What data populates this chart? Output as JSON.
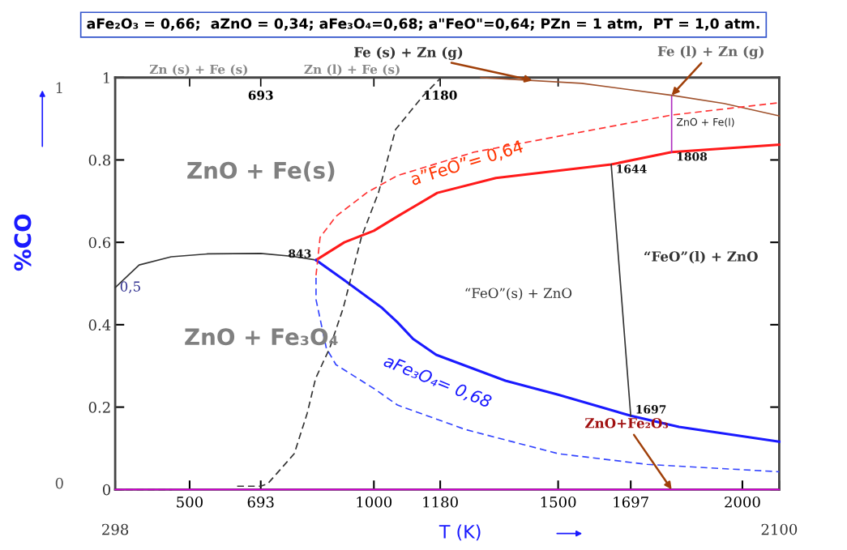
{
  "chart_data": {
    "type": "line",
    "title": "aFe₂O₃ = 0,66;  aZnO = 0,34; aFe₃O₄=0,68; a\"FeO\"=0,64; PZn = 1 atm,  PT = 1,0 atm.",
    "xlabel": "T (K)",
    "ylabel": "%CO",
    "xlim": [
      298,
      2100
    ],
    "ylim": [
      0,
      1
    ],
    "xticks": [
      {
        "value": 298,
        "label": null
      },
      500,
      693,
      1000,
      1180,
      1500,
      1697,
      2000,
      {
        "value": 2100,
        "label": null
      }
    ],
    "yticks": [
      0,
      0.2,
      0.4,
      0.6,
      0.8,
      1
    ],
    "x2lim": [
      298,
      2100
    ],
    "x2ticks": [
      {
        "value": 500,
        "label": null
      },
      {
        "value": 693,
        "label": "693"
      },
      {
        "value": 1000,
        "label": null
      },
      {
        "value": 1180,
        "label": "1180"
      },
      {
        "value": 1500,
        "label": null
      }
    ],
    "grid": false,
    "series": [
      {
        "color": "#333333",
        "line_style": "solid",
        "x": [
          298,
          363,
          450,
          550,
          693,
          780,
          843
        ],
        "values": [
          0.49,
          0.545,
          0.565,
          0.572,
          0.573,
          0.566,
          0.557
        ]
      },
      {
        "color": "#ff1a1a",
        "line_style": "solid",
        "x": [
          843,
          920,
          1000,
          1064,
          1172,
          1331,
          1644,
          1808,
          2100
        ],
        "values": [
          0.557,
          0.6,
          0.628,
          0.663,
          0.72,
          0.756,
          0.789,
          0.819,
          0.837
        ]
      },
      {
        "color": "#1a1aff",
        "line_style": "solid",
        "x": [
          843,
          917,
          1022,
          1064,
          1106,
          1169,
          1357,
          1500,
          1697,
          1828,
          2100
        ],
        "values": [
          0.557,
          0.51,
          0.441,
          0.406,
          0.366,
          0.327,
          0.264,
          0.23,
          0.179,
          0.152,
          0.116
        ]
      },
      {
        "color": "#333333",
        "line_style": "solid",
        "x": [
          1644,
          1697
        ],
        "values": [
          0.789,
          0.179
        ]
      },
      {
        "color": "#b030c0",
        "line_style": "solid",
        "x": [
          1808,
          1808
        ],
        "values": [
          0.819,
          0.957
        ]
      },
      {
        "color": "#a0522d",
        "line_style": "solid",
        "x": [
          1290,
          1564,
          1808,
          1950,
          2100
        ],
        "values": [
          1.0,
          0.986,
          0.957,
          0.937,
          0.907
        ]
      },
      {
        "color": "#ff3333",
        "line_style": "dashed",
        "x": [
          843,
          854,
          897,
          983,
          1064,
          1272,
          1564,
          1808,
          2100
        ],
        "values": [
          0.52,
          0.612,
          0.663,
          0.722,
          0.762,
          0.819,
          0.868,
          0.909,
          0.939
        ]
      },
      {
        "color": "#3344ff",
        "line_style": "dashed",
        "x": [
          843,
          843,
          871,
          897,
          1002,
          1064,
          1247,
          1500,
          1741,
          2100
        ],
        "values": [
          0.514,
          0.461,
          0.343,
          0.303,
          0.244,
          0.205,
          0.146,
          0.087,
          0.061,
          0.043
        ]
      },
      {
        "color": "#333333",
        "line_style": "dashed",
        "x": [
          298,
          452,
          540,
          629,
          693,
          712,
          784,
          819,
          842,
          880,
          917,
          966,
          1013,
          1059,
          1131,
          1180
        ],
        "values": [
          0,
          0,
          null,
          0.008,
          0.008,
          0.014,
          0.087,
          0.185,
          0.27,
          0.343,
          0.441,
          0.612,
          0.722,
          0.874,
          0.953,
          0.998
        ]
      },
      {
        "color": "#e000e0",
        "line_style": "solid",
        "x": [
          298,
          2100
        ],
        "values": [
          0,
          0
        ]
      }
    ],
    "annotations": [
      "1",
      "0",
      "Zn (s) + Fe (s)",
      "Zn (l) + Fe (s)",
      {
        "text": "Fe (s) + Zn (g)",
        "x": 1430,
        "y": 0.993
      },
      {
        "text": "Fe (l) + Zn (g)",
        "x": 1808,
        "y": 0.957
      },
      {
        "text": "ZnO+Fe₂O₃",
        "x": 1808,
        "y": 0
      },
      "ZnO + Fe(s)",
      "ZnO + Fe₃O₄",
      "“FeO”(s) + ZnO",
      "“FeO”(l) + ZnO",
      "ZnO + Fe(l)",
      {
        "text": "843",
        "x": 843,
        "y": 0.557
      },
      {
        "text": "1644",
        "x": 1644,
        "y": 0.789
      },
      {
        "text": "1808",
        "x": 1808,
        "y": 0.819
      },
      {
        "text": "1697",
        "x": 1697,
        "y": 0.179
      },
      {
        "text": "0,5",
        "x": 298,
        "y": 0.49
      },
      "a”FeO”= 0,64",
      "aFe₃O₄= 0,68",
      "298",
      "2100"
    ]
  }
}
